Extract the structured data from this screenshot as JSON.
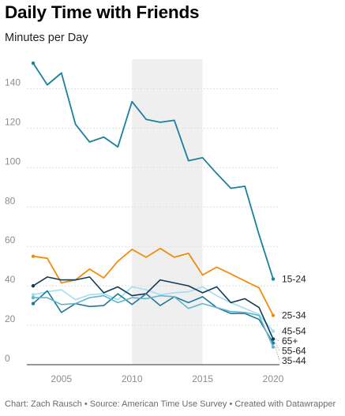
{
  "chart_data": {
    "type": "line",
    "title": "Daily Time with Friends",
    "subtitle": "Minutes per Day",
    "footer": "Chart: Zach Rausch • Source: American Time Use Survey • Created with Datawrapper",
    "x": [
      2003,
      2004,
      2005,
      2006,
      2007,
      2008,
      2009,
      2010,
      2011,
      2012,
      2013,
      2014,
      2015,
      2016,
      2017,
      2018,
      2019,
      2020
    ],
    "xlim": [
      2003,
      2020
    ],
    "ylim": [
      0,
      155
    ],
    "x_ticks": [
      2005,
      2010,
      2015,
      2020
    ],
    "y_ticks": [
      0,
      20,
      40,
      60,
      80,
      100,
      120,
      140
    ],
    "x_tick_labels": [
      "2005",
      "2010",
      "2015",
      "2020"
    ],
    "y_tick_labels": [
      "0",
      "20",
      "40",
      "60",
      "80",
      "100",
      "120",
      "140"
    ],
    "grid": "horizontal",
    "highlight_band": [
      2010,
      2015
    ],
    "series": [
      {
        "name": "15-24",
        "color": "#1b7fa0",
        "width": 1.8,
        "values": [
          153,
          142,
          148,
          122,
          113,
          115.5,
          110.5,
          133.5,
          124.5,
          123,
          124,
          103.5,
          105,
          97,
          89.5,
          90.5,
          66,
          43.5
        ]
      },
      {
        "name": "25-34",
        "color": "#f28c0f",
        "width": 1.8,
        "values": [
          55,
          54,
          41.5,
          43,
          48.5,
          44,
          52.5,
          58.5,
          54.5,
          59,
          54.5,
          56.5,
          45.5,
          49.5,
          46,
          42.5,
          39,
          25
        ]
      },
      {
        "name": "45-54",
        "color": "#a3dcef",
        "width": 1.6,
        "values": [
          35.5,
          37,
          38,
          33,
          35.5,
          36,
          33,
          39.5,
          38,
          35.5,
          36.5,
          37,
          39.5,
          35,
          31.5,
          28.5,
          25.5,
          17
        ]
      },
      {
        "name": "65+",
        "color": "#0d3b58",
        "width": 1.6,
        "values": [
          40,
          44.5,
          43,
          43,
          44.5,
          36.5,
          39.5,
          35,
          36,
          43,
          41.5,
          40,
          36.5,
          39.5,
          31.5,
          33.5,
          29,
          13
        ]
      },
      {
        "name": "55-64",
        "color": "#1f7a96",
        "width": 1.6,
        "values": [
          31,
          37.5,
          26.5,
          31,
          29.5,
          30,
          36,
          30.5,
          36,
          30,
          34.5,
          31.5,
          34.5,
          29,
          26,
          26,
          23,
          11
        ]
      },
      {
        "name": "35-44",
        "color": "#63b5cf",
        "width": 1.6,
        "values": [
          34,
          34,
          30.5,
          31,
          34,
          35,
          31.5,
          34,
          33.5,
          35,
          34.5,
          28.5,
          31,
          29,
          27,
          26.5,
          25,
          9
        ]
      }
    ]
  }
}
